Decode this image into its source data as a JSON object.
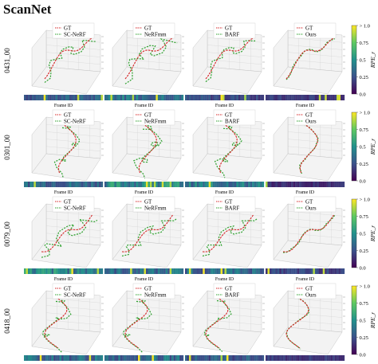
{
  "figure_title": "ScanNet",
  "row_labels": [
    "0431_00",
    "0301_00",
    "0079_00",
    "0418_00"
  ],
  "methods": [
    "SC-NeRF",
    "NeRFmm",
    "BARF",
    "Ours"
  ],
  "legend_gt": "GT",
  "frame_axis_label": "Frame ID",
  "colorbar": {
    "label": "RPE_r",
    "ticks": [
      "0.0",
      "0.25",
      "0.5",
      "0.75",
      "> 1.0"
    ],
    "colormap": "viridis",
    "range": [
      0,
      1
    ]
  },
  "colors": {
    "gt": "#d62728",
    "estimate": "#2ca02c",
    "grid": "#cccccc",
    "pane": "#f3f3f3"
  },
  "chart_data": {
    "type": "heatmap",
    "title": "ScanNet",
    "description_rows": [
      "0431_00",
      "0301_00",
      "0079_00",
      "0418_00"
    ],
    "series": [
      {
        "scene": "0431_00",
        "method": "SC-NeRF",
        "rpe_r_mean_level": 0.25
      },
      {
        "scene": "0431_00",
        "method": "NeRFmm",
        "rpe_r_mean_level": 0.35
      },
      {
        "scene": "0431_00",
        "method": "BARF",
        "rpe_r_mean_level": 0.2
      },
      {
        "scene": "0431_00",
        "method": "Ours",
        "rpe_r_mean_level": 0.15
      },
      {
        "scene": "0301_00",
        "method": "SC-NeRF",
        "rpe_r_mean_level": 0.3
      },
      {
        "scene": "0301_00",
        "method": "NeRFmm",
        "rpe_r_mean_level": 0.4
      },
      {
        "scene": "0301_00",
        "method": "BARF",
        "rpe_r_mean_level": 0.35
      },
      {
        "scene": "0301_00",
        "method": "Ours",
        "rpe_r_mean_level": 0.12
      },
      {
        "scene": "0079_00",
        "method": "SC-NeRF",
        "rpe_r_mean_level": 0.4
      },
      {
        "scene": "0079_00",
        "method": "NeRFmm",
        "rpe_r_mean_level": 0.3
      },
      {
        "scene": "0079_00",
        "method": "BARF",
        "rpe_r_mean_level": 0.3
      },
      {
        "scene": "0079_00",
        "method": "Ours",
        "rpe_r_mean_level": 0.18
      },
      {
        "scene": "0418_00",
        "method": "SC-NeRF",
        "rpe_r_mean_level": 0.3
      },
      {
        "scene": "0418_00",
        "method": "NeRFmm",
        "rpe_r_mean_level": 0.3
      },
      {
        "scene": "0418_00",
        "method": "BARF",
        "rpe_r_mean_level": 0.25
      },
      {
        "scene": "0418_00",
        "method": "Ours",
        "rpe_r_mean_level": 0.15
      }
    ],
    "xlabel": "Frame ID",
    "ylabel": "",
    "zlim": [
      0,
      1
    ]
  }
}
